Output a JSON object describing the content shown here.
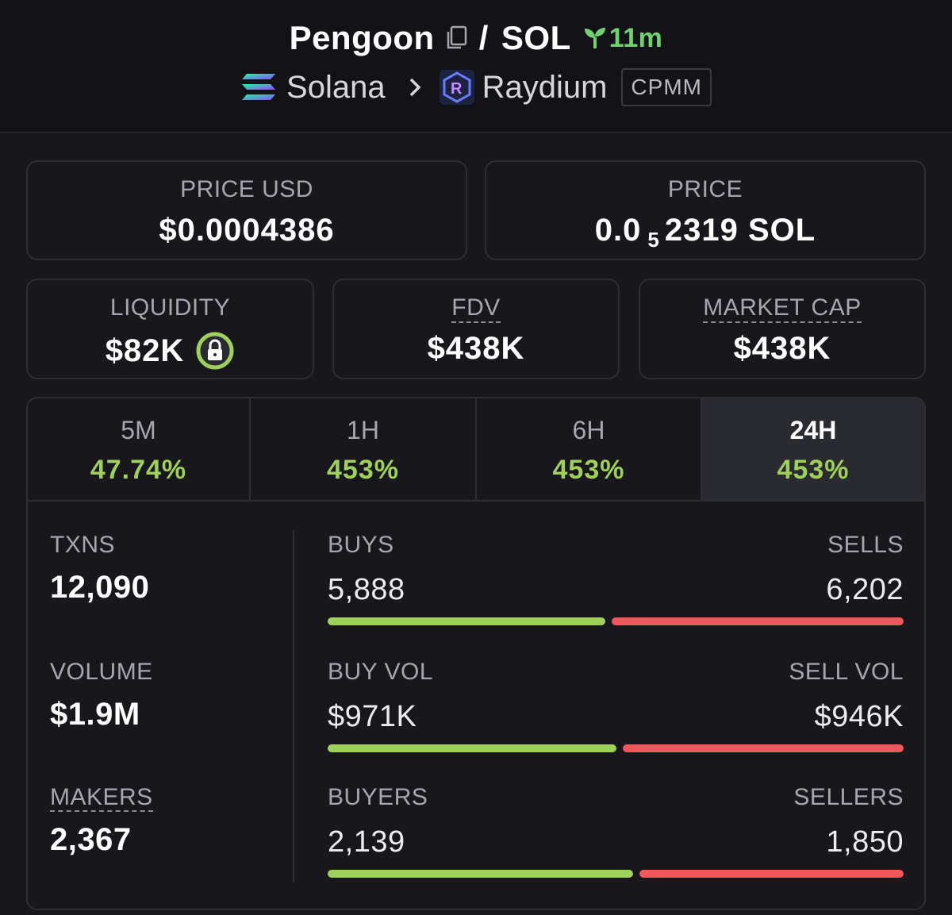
{
  "header": {
    "token": "Pengoon",
    "separator": "/",
    "quote": "SOL",
    "age": "11m",
    "chain": "Solana",
    "dex": "Raydium",
    "pool_type": "CPMM",
    "icons": {
      "copy": "copy-icon",
      "age": "sprout-icon",
      "chain": "solana-logo-icon",
      "chevron": "chevron-right-icon",
      "dex": "raydium-logo-icon"
    }
  },
  "price": {
    "usd_label": "PRICE USD",
    "usd_value": "$0.0004386",
    "native_label": "PRICE",
    "native_prefix": "0.0",
    "native_zeros": "5",
    "native_digits": "2319 SOL"
  },
  "metrics": {
    "liquidity_label": "LIQUIDITY",
    "liquidity_value": "$82K",
    "fdv_label": "FDV",
    "fdv_value": "$438K",
    "mcap_label": "MARKET CAP",
    "mcap_value": "$438K"
  },
  "timeframes": [
    {
      "label": "5M",
      "change": "47.74%"
    },
    {
      "label": "1H",
      "change": "453%"
    },
    {
      "label": "6H",
      "change": "453%"
    },
    {
      "label": "24H",
      "change": "453%"
    }
  ],
  "active_timeframe": "24H",
  "stats": {
    "txns_label": "TXNS",
    "txns_value": "12,090",
    "volume_label": "VOLUME",
    "volume_value": "$1.9M",
    "makers_label": "MAKERS",
    "makers_value": "2,367"
  },
  "breakdown": [
    {
      "left_label": "BUYS",
      "left_value": "5,888",
      "right_label": "SELLS",
      "right_value": "6,202",
      "buy_fraction": 0.487
    },
    {
      "left_label": "BUY VOL",
      "left_value": "$971K",
      "right_label": "SELL VOL",
      "right_value": "$946K",
      "buy_fraction": 0.507
    },
    {
      "left_label": "BUYERS",
      "left_value": "2,139",
      "right_label": "SELLERS",
      "right_value": "1,850",
      "buy_fraction": 0.536
    }
  ],
  "colors": {
    "positive": "#9fd15a",
    "negative": "#f0575a",
    "age": "#6fd16f",
    "lock_ring": "#9fd15a"
  }
}
